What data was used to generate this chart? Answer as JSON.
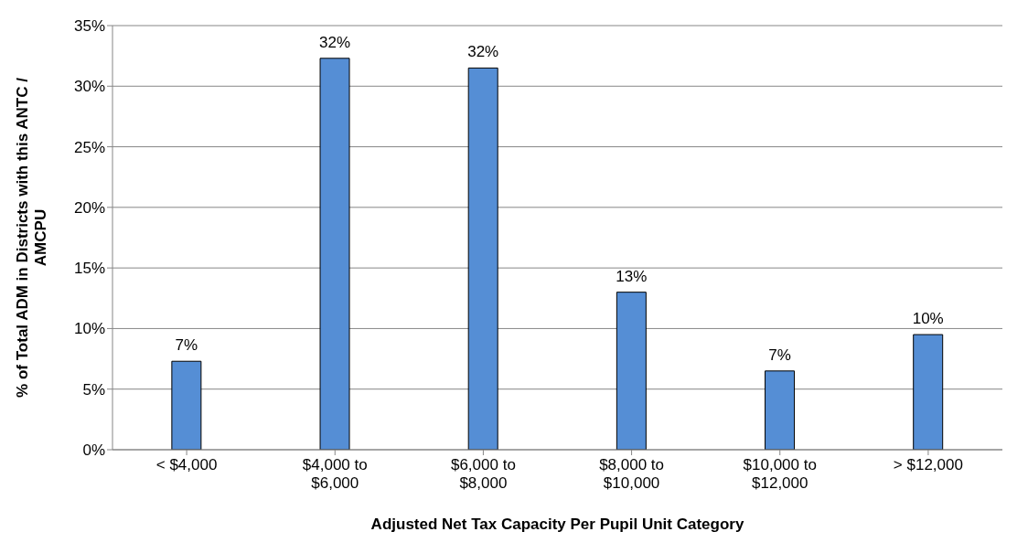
{
  "chart_data": {
    "type": "bar",
    "xlabel": "Adjusted Net Tax Capacity Per Pupil Unit Category",
    "ylabel": "% of Total ADM in Districts with this ANTC / AMCPU",
    "categories": [
      "< $4,000",
      "$4,000 to $6,000",
      "$6,000 to $8,000",
      "$8,000 to $10,000",
      "$10,000 to $12,000",
      "> $12,000"
    ],
    "values": [
      7.3,
      32.3,
      31.5,
      13.0,
      6.5,
      9.5
    ],
    "value_labels": [
      "7%",
      "32%",
      "32%",
      "13%",
      "7%",
      "10%"
    ],
    "color": "#558ed5",
    "ylim": [
      0,
      35
    ],
    "yticks": [
      {
        "value": 0,
        "label": "0%"
      },
      {
        "value": 5,
        "label": "5%"
      },
      {
        "value": 10,
        "label": "10%"
      },
      {
        "value": 15,
        "label": "15%"
      },
      {
        "value": 20,
        "label": "20%"
      },
      {
        "value": 25,
        "label": "25%"
      },
      {
        "value": 30,
        "label": "30%"
      },
      {
        "value": 35,
        "label": "35%"
      }
    ],
    "grid": "y",
    "legend": false
  }
}
